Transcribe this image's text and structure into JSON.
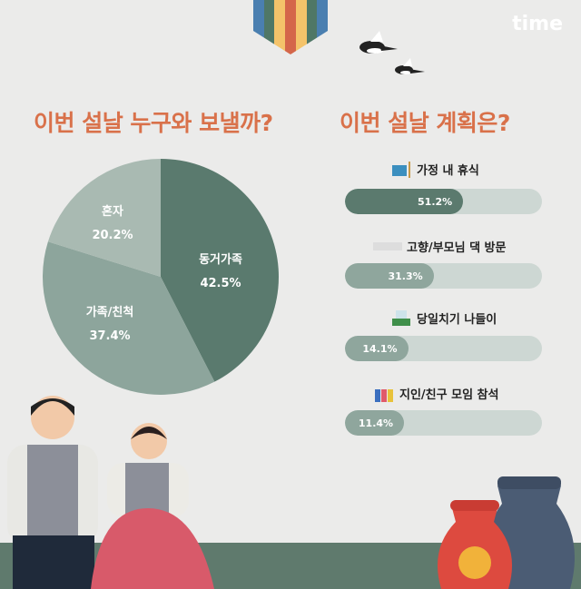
{
  "logo": "time",
  "colors": {
    "title": "#d9714a",
    "pie": [
      "#5a7a6e",
      "#8da59c",
      "#a9bab2"
    ],
    "bar_primary": "#5b7a6e",
    "bar_secondary": "#8fa69d",
    "track": "#cdd7d3"
  },
  "chart_data": [
    {
      "type": "pie",
      "title": "이번 설날 누구와 보낼까?",
      "categories": [
        "동거가족",
        "가족/친척",
        "혼자"
      ],
      "values": [
        42.5,
        37.4,
        20.2
      ],
      "labels": [
        "42.5%",
        "37.4%",
        "20.2%"
      ],
      "start": "top",
      "direction": "clockwise"
    },
    {
      "type": "bar",
      "orientation": "horizontal",
      "title": "이번 설날 계획은?",
      "categories": [
        "가정 내 휴식",
        "고향/부모님 댁 방문",
        "당일치기 나들이",
        "지인/친구 모임 참석"
      ],
      "values": [
        51.2,
        31.3,
        14.1,
        11.4
      ],
      "labels": [
        "51.2%",
        "31.3%",
        "14.1%",
        "11.4%"
      ],
      "icons": [
        "armchair-lamp-icon",
        "train-icon",
        "mountain-trees-icon",
        "friends-cheering-icon"
      ]
    }
  ]
}
